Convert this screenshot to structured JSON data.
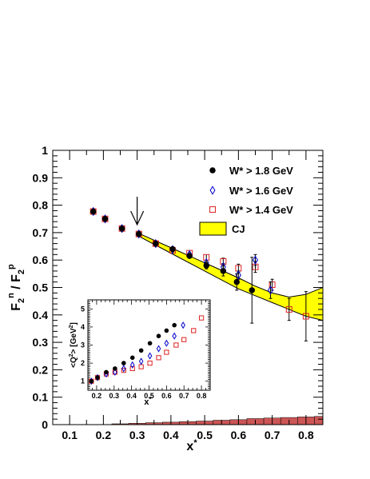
{
  "chart_data": [
    {
      "type": "scatter",
      "title": "",
      "xlabel": "x*",
      "ylabel": "F2n / F2p",
      "xlim": [
        0.05,
        0.85
      ],
      "ylim": [
        0,
        1.0
      ],
      "xticks": [
        "0.1",
        "0.2",
        "0.3",
        "0.4",
        "0.5",
        "0.6",
        "0.7",
        "0.8"
      ],
      "yticks": [
        "0",
        "0.1",
        "0.2",
        "0.3",
        "0.4",
        "0.5",
        "0.6",
        "0.7",
        "0.8",
        "0.9",
        "1"
      ],
      "legend_position": "top-right",
      "arrow_at_x": 0.3,
      "series": [
        {
          "name": "W* > 1.8 GeV",
          "marker": "filled-circle",
          "color": "#000000",
          "points": [
            {
              "x": 0.17,
              "y": 0.777,
              "err": 0.005
            },
            {
              "x": 0.205,
              "y": 0.75,
              "err": 0.005
            },
            {
              "x": 0.255,
              "y": 0.715,
              "err": 0.005
            },
            {
              "x": 0.305,
              "y": 0.695,
              "err": 0.006
            },
            {
              "x": 0.355,
              "y": 0.66,
              "err": 0.006
            },
            {
              "x": 0.405,
              "y": 0.64,
              "err": 0.007
            },
            {
              "x": 0.455,
              "y": 0.615,
              "err": 0.008
            },
            {
              "x": 0.505,
              "y": 0.58,
              "err": 0.012
            },
            {
              "x": 0.555,
              "y": 0.56,
              "err": 0.018
            },
            {
              "x": 0.595,
              "y": 0.52,
              "err": 0.03
            },
            {
              "x": 0.64,
              "y": 0.49,
              "err": 0.12
            }
          ]
        },
        {
          "name": "W* > 1.6 GeV",
          "marker": "open-diamond",
          "color": "#0000cc",
          "points": [
            {
              "x": 0.17,
              "y": 0.777,
              "err": 0.005
            },
            {
              "x": 0.205,
              "y": 0.75,
              "err": 0.005
            },
            {
              "x": 0.255,
              "y": 0.715,
              "err": 0.005
            },
            {
              "x": 0.305,
              "y": 0.695,
              "err": 0.006
            },
            {
              "x": 0.355,
              "y": 0.66,
              "err": 0.006
            },
            {
              "x": 0.405,
              "y": 0.638,
              "err": 0.007
            },
            {
              "x": 0.455,
              "y": 0.62,
              "err": 0.008
            },
            {
              "x": 0.505,
              "y": 0.59,
              "err": 0.01
            },
            {
              "x": 0.555,
              "y": 0.575,
              "err": 0.012
            },
            {
              "x": 0.6,
              "y": 0.545,
              "err": 0.015
            },
            {
              "x": 0.65,
              "y": 0.6,
              "err": 0.02
            },
            {
              "x": 0.695,
              "y": 0.49,
              "err": 0.03
            }
          ]
        },
        {
          "name": "W* > 1.4 GeV",
          "marker": "open-square",
          "color": "#dd2222",
          "points": [
            {
              "x": 0.17,
              "y": 0.777,
              "err": 0.005
            },
            {
              "x": 0.205,
              "y": 0.75,
              "err": 0.005
            },
            {
              "x": 0.255,
              "y": 0.715,
              "err": 0.005
            },
            {
              "x": 0.305,
              "y": 0.695,
              "err": 0.006
            },
            {
              "x": 0.355,
              "y": 0.66,
              "err": 0.006
            },
            {
              "x": 0.405,
              "y": 0.635,
              "err": 0.007
            },
            {
              "x": 0.455,
              "y": 0.625,
              "err": 0.008
            },
            {
              "x": 0.505,
              "y": 0.61,
              "err": 0.01
            },
            {
              "x": 0.555,
              "y": 0.595,
              "err": 0.012
            },
            {
              "x": 0.6,
              "y": 0.57,
              "err": 0.015
            },
            {
              "x": 0.65,
              "y": 0.575,
              "err": 0.02
            },
            {
              "x": 0.7,
              "y": 0.51,
              "err": 0.02
            },
            {
              "x": 0.75,
              "y": 0.42,
              "err": 0.04
            },
            {
              "x": 0.8,
              "y": 0.395,
              "err": 0.09
            }
          ]
        }
      ],
      "band": {
        "name": "CJ",
        "color": "#ffff00",
        "x": [
          0.3,
          0.4,
          0.5,
          0.6,
          0.65,
          0.7,
          0.75,
          0.8,
          0.85
        ],
        "upper": [
          0.7,
          0.645,
          0.59,
          0.535,
          0.505,
          0.48,
          0.465,
          0.475,
          0.5
        ],
        "lower": [
          0.69,
          0.625,
          0.56,
          0.495,
          0.47,
          0.445,
          0.42,
          0.395,
          0.38
        ]
      },
      "systematic_band": {
        "color": "#cc5555",
        "x": [
          0.25,
          0.3,
          0.35,
          0.4,
          0.45,
          0.5,
          0.55,
          0.6,
          0.65,
          0.7,
          0.75,
          0.8,
          0.85
        ],
        "y": [
          0.003,
          0.005,
          0.007,
          0.009,
          0.011,
          0.013,
          0.016,
          0.018,
          0.022,
          0.024,
          0.026,
          0.028,
          0.03
        ]
      }
    },
    {
      "type": "scatter",
      "title": "",
      "xlabel": "x*",
      "ylabel": "<Q²> [GeV²]",
      "xlim": [
        0.15,
        0.85
      ],
      "ylim": [
        0.5,
        5.5
      ],
      "xticks": [
        "0.2",
        "0.3",
        "0.4",
        "0.5",
        "0.6",
        "0.7",
        "0.8"
      ],
      "yticks": [
        "1",
        "2",
        "3",
        "4",
        "5"
      ],
      "series": [
        {
          "name": "W* > 1.8 GeV",
          "marker": "filled-circle",
          "color": "#000000",
          "points": [
            {
              "x": 0.17,
              "y": 1.0
            },
            {
              "x": 0.205,
              "y": 1.2
            },
            {
              "x": 0.255,
              "y": 1.5
            },
            {
              "x": 0.305,
              "y": 1.7
            },
            {
              "x": 0.355,
              "y": 2.0
            },
            {
              "x": 0.405,
              "y": 2.3
            },
            {
              "x": 0.455,
              "y": 2.7
            },
            {
              "x": 0.505,
              "y": 3.1
            },
            {
              "x": 0.555,
              "y": 3.5
            },
            {
              "x": 0.6,
              "y": 3.8
            },
            {
              "x": 0.645,
              "y": 4.1
            }
          ]
        },
        {
          "name": "W* > 1.6 GeV",
          "marker": "open-diamond",
          "color": "#0000cc",
          "points": [
            {
              "x": 0.17,
              "y": 1.0
            },
            {
              "x": 0.205,
              "y": 1.2
            },
            {
              "x": 0.255,
              "y": 1.4
            },
            {
              "x": 0.305,
              "y": 1.5
            },
            {
              "x": 0.355,
              "y": 1.7
            },
            {
              "x": 0.405,
              "y": 1.9
            },
            {
              "x": 0.455,
              "y": 2.1
            },
            {
              "x": 0.505,
              "y": 2.4
            },
            {
              "x": 0.555,
              "y": 2.8
            },
            {
              "x": 0.6,
              "y": 3.1
            },
            {
              "x": 0.645,
              "y": 3.5
            },
            {
              "x": 0.695,
              "y": 4.1
            }
          ]
        },
        {
          "name": "W* > 1.4 GeV",
          "marker": "open-square",
          "color": "#dd2222",
          "points": [
            {
              "x": 0.17,
              "y": 1.0
            },
            {
              "x": 0.205,
              "y": 1.2
            },
            {
              "x": 0.255,
              "y": 1.4
            },
            {
              "x": 0.305,
              "y": 1.5
            },
            {
              "x": 0.355,
              "y": 1.6
            },
            {
              "x": 0.405,
              "y": 1.7
            },
            {
              "x": 0.455,
              "y": 1.8
            },
            {
              "x": 0.505,
              "y": 2.0
            },
            {
              "x": 0.555,
              "y": 2.3
            },
            {
              "x": 0.6,
              "y": 2.6
            },
            {
              "x": 0.655,
              "y": 3.0
            },
            {
              "x": 0.7,
              "y": 3.3
            },
            {
              "x": 0.755,
              "y": 3.8
            },
            {
              "x": 0.8,
              "y": 4.5
            }
          ]
        }
      ]
    }
  ]
}
